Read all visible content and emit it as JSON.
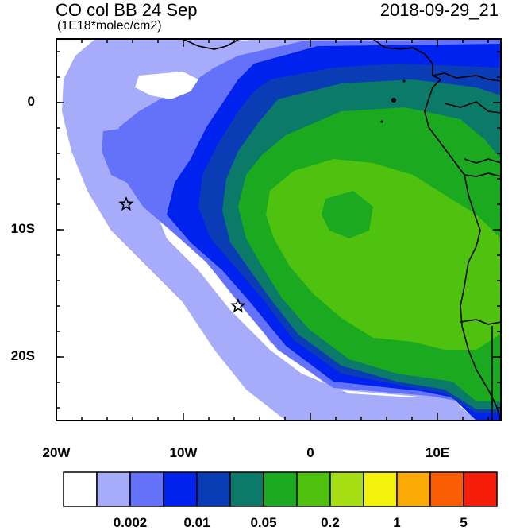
{
  "title": {
    "left": "CO col BB 24 Sep",
    "units": "(1E18*molec/cm2)",
    "right": "2018-09-29_21"
  },
  "axes": {
    "y_labels": [
      {
        "value": 0,
        "text": "0"
      },
      {
        "value": -10,
        "text": "10S"
      },
      {
        "value": -20,
        "text": "20S"
      }
    ],
    "x_labels": [
      {
        "value": -20,
        "text": "20W"
      },
      {
        "value": -10,
        "text": "10W"
      },
      {
        "value": 0,
        "text": "0"
      },
      {
        "value": 10,
        "text": "10E"
      }
    ],
    "lon_range": [
      -20,
      15
    ],
    "lat_range": [
      -25,
      5
    ]
  },
  "markers": [
    {
      "name": "station-star-north",
      "lon": -14.5,
      "lat": -8.0
    },
    {
      "name": "station-star-south",
      "lon": -5.7,
      "lat": -16.0
    }
  ],
  "colorbar": {
    "colors": [
      "#ffffff",
      "#a7acfa",
      "#6472fa",
      "#0022ef",
      "#0a3db5",
      "#0b7a68",
      "#1ba91f",
      "#4fc20f",
      "#a6de14",
      "#f2f20a",
      "#fbaa06",
      "#fb5e02",
      "#f51c08"
    ],
    "tick_labels": [
      {
        "index": 2,
        "text": "0.002"
      },
      {
        "index": 4,
        "text": "0.01"
      },
      {
        "index": 6,
        "text": "0.05"
      },
      {
        "index": 8,
        "text": "0.2"
      },
      {
        "index": 10,
        "text": "1"
      },
      {
        "index": 12,
        "text": "5"
      }
    ]
  }
}
